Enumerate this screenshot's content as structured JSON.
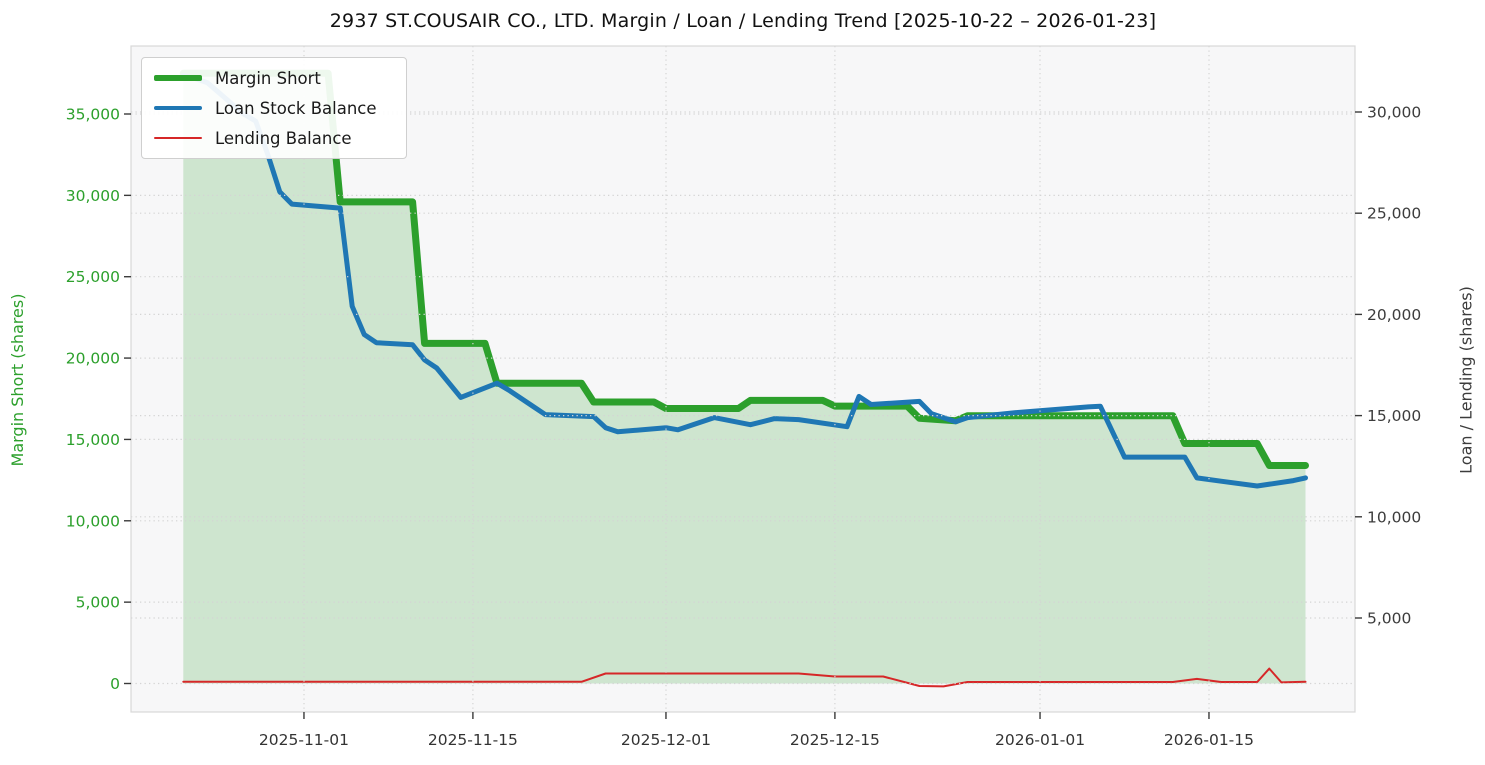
{
  "title": "2937 ST.COUSAIR CO., LTD. Margin / Loan / Lending Trend [2025-10-22 – 2026-01-23]",
  "chart_data": {
    "type": "line",
    "title": "2937 ST.COUSAIR CO., LTD. Margin / Loan / Lending Trend [2025-10-22 – 2026-01-23]",
    "date_range": [
      "2025-10-22",
      "2026-01-23"
    ],
    "ylabel_left": "Margin Short (shares)",
    "ylabel_right": "Loan / Lending (shares)",
    "grid": "dotted",
    "legend_position": "upper left",
    "left_ylim": [
      -1750,
      39200
    ],
    "right_ylim": [
      150,
      33300
    ],
    "x_ticks": [
      {
        "label": "2025-11-01",
        "date": "2025-11-01"
      },
      {
        "label": "2025-11-15",
        "date": "2025-11-15"
      },
      {
        "label": "2025-12-01",
        "date": "2025-12-01"
      },
      {
        "label": "2025-12-15",
        "date": "2025-12-15"
      },
      {
        "label": "2026-01-01",
        "date": "2026-01-01"
      },
      {
        "label": "2026-01-15",
        "date": "2026-01-15"
      }
    ],
    "left_ticks": [
      {
        "label": "0",
        "value": 0
      },
      {
        "label": "5,000",
        "value": 5000
      },
      {
        "label": "10,000",
        "value": 10000
      },
      {
        "label": "15,000",
        "value": 15000
      },
      {
        "label": "20,000",
        "value": 20000
      },
      {
        "label": "25,000",
        "value": 25000
      },
      {
        "label": "30,000",
        "value": 30000
      },
      {
        "label": "35,000",
        "value": 35000
      }
    ],
    "right_ticks": [
      {
        "label": "5,000",
        "value": 5000
      },
      {
        "label": "10,000",
        "value": 10000
      },
      {
        "label": "15,000",
        "value": 15000
      },
      {
        "label": "20,000",
        "value": 20000
      },
      {
        "label": "25,000",
        "value": 25000
      },
      {
        "label": "30,000",
        "value": 30000
      }
    ],
    "series": [
      {
        "name": "Margin Short",
        "axis": "left",
        "color": "#2ca02c",
        "width": 7,
        "fill": true,
        "fill_color": "rgba(44,160,44,0.20)",
        "points": [
          [
            "2025-10-22",
            37500
          ],
          [
            "2025-11-03",
            37500
          ],
          [
            "2025-11-04",
            29600
          ],
          [
            "2025-11-10",
            29600
          ],
          [
            "2025-11-11",
            20900
          ],
          [
            "2025-11-16",
            20900
          ],
          [
            "2025-11-17",
            18450
          ],
          [
            "2025-11-24",
            18450
          ],
          [
            "2025-11-25",
            17300
          ],
          [
            "2025-11-30",
            17300
          ],
          [
            "2025-12-01",
            16900
          ],
          [
            "2025-12-07",
            16900
          ],
          [
            "2025-12-08",
            17400
          ],
          [
            "2025-12-14",
            17400
          ],
          [
            "2025-12-15",
            17050
          ],
          [
            "2025-12-21",
            17050
          ],
          [
            "2025-12-22",
            16300
          ],
          [
            "2025-12-25",
            16150
          ],
          [
            "2025-12-26",
            16450
          ],
          [
            "2026-01-12",
            16450
          ],
          [
            "2026-01-13",
            14750
          ],
          [
            "2026-01-19",
            14750
          ],
          [
            "2026-01-20",
            13400
          ],
          [
            "2026-01-23",
            13400
          ]
        ]
      },
      {
        "name": "Loan Stock Balance",
        "axis": "right",
        "color": "#1f77b4",
        "width": 5,
        "fill": false,
        "points": [
          [
            "2025-10-22",
            31800
          ],
          [
            "2025-10-23",
            31650
          ],
          [
            "2025-10-24",
            31450
          ],
          [
            "2025-10-27",
            29900
          ],
          [
            "2025-10-28",
            29550
          ],
          [
            "2025-10-29",
            27900
          ],
          [
            "2025-10-30",
            26050
          ],
          [
            "2025-10-31",
            25450
          ],
          [
            "2025-11-04",
            25250
          ],
          [
            "2025-11-05",
            20400
          ],
          [
            "2025-11-06",
            19000
          ],
          [
            "2025-11-07",
            18600
          ],
          [
            "2025-11-10",
            18500
          ],
          [
            "2025-11-11",
            17750
          ],
          [
            "2025-11-12",
            17350
          ],
          [
            "2025-11-14",
            15900
          ],
          [
            "2025-11-17",
            16600
          ],
          [
            "2025-11-18",
            16250
          ],
          [
            "2025-11-20",
            15450
          ],
          [
            "2025-11-21",
            15050
          ],
          [
            "2025-11-25",
            14950
          ],
          [
            "2025-11-26",
            14400
          ],
          [
            "2025-11-27",
            14200
          ],
          [
            "2025-12-01",
            14400
          ],
          [
            "2025-12-02",
            14300
          ],
          [
            "2025-12-05",
            14900
          ],
          [
            "2025-12-08",
            14550
          ],
          [
            "2025-12-10",
            14850
          ],
          [
            "2025-12-12",
            14800
          ],
          [
            "2025-12-16",
            14450
          ],
          [
            "2025-12-17",
            15950
          ],
          [
            "2025-12-18",
            15550
          ],
          [
            "2025-12-22",
            15700
          ],
          [
            "2025-12-23",
            15100
          ],
          [
            "2025-12-25",
            14700
          ],
          [
            "2025-12-26",
            14900
          ],
          [
            "2025-12-30",
            15150
          ],
          [
            "2026-01-05",
            15430
          ],
          [
            "2026-01-06",
            15460
          ],
          [
            "2026-01-08",
            12950
          ],
          [
            "2026-01-13",
            12950
          ],
          [
            "2026-01-14",
            11920
          ],
          [
            "2026-01-16",
            11760
          ],
          [
            "2026-01-19",
            11520
          ],
          [
            "2026-01-22",
            11790
          ],
          [
            "2026-01-23",
            11920
          ]
        ]
      },
      {
        "name": "Lending Balance",
        "axis": "right",
        "color": "#d62728",
        "width": 2,
        "fill": false,
        "points": [
          [
            "2025-10-22",
            1850
          ],
          [
            "2025-11-24",
            1850
          ],
          [
            "2025-11-26",
            2260
          ],
          [
            "2025-12-12",
            2260
          ],
          [
            "2025-12-15",
            2110
          ],
          [
            "2025-12-19",
            2110
          ],
          [
            "2025-12-22",
            1640
          ],
          [
            "2025-12-24",
            1620
          ],
          [
            "2025-12-26",
            1840
          ],
          [
            "2026-01-12",
            1840
          ],
          [
            "2026-01-14",
            1990
          ],
          [
            "2026-01-16",
            1840
          ],
          [
            "2026-01-19",
            1840
          ],
          [
            "2026-01-20",
            2500
          ],
          [
            "2026-01-21",
            1820
          ],
          [
            "2026-01-23",
            1850
          ]
        ]
      }
    ]
  }
}
